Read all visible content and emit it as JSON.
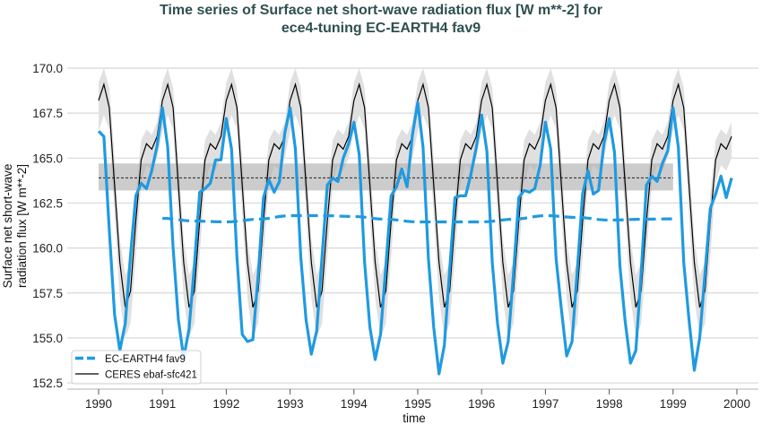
{
  "chart_data": {
    "type": "line",
    "title": "Time series of Surface net short-wave radiation flux [W m**-2] for ece4-tuning EC-EARTH4 fav9",
    "title_lines": [
      "Time series of Surface net short-wave radiation flux [W m**-2] for",
      "ece4-tuning EC-EARTH4 fav9"
    ],
    "xlabel": "time",
    "ylabel_lines": [
      "Surface net short-wave",
      "radiation flux [W m**-2]"
    ],
    "xlim": [
      1989.55,
      2000.4
    ],
    "ylim": [
      152.0,
      171.2
    ],
    "xticks": [
      "1990",
      "1991",
      "1992",
      "1993",
      "1994",
      "1995",
      "1996",
      "1997",
      "1998",
      "1999",
      "2000"
    ],
    "yticks": [
      "152.5",
      "155.0",
      "157.5",
      "160.0",
      "162.5",
      "165.0",
      "167.5",
      "170.0"
    ],
    "grid": "horizontal",
    "legend_position": "lower-left",
    "colors": {
      "model": "#1f9ae0",
      "obs": "#000000",
      "band": "#cccccc",
      "title": "#2f4f4f"
    },
    "series": [
      {
        "name": "EC-EARTH4 fav9",
        "style": "dashed",
        "note_visible": "",
        "running_mean": {
          "x": [
            1991.0,
            1991.5,
            1992.0,
            1992.5,
            1993.0,
            1993.5,
            1994.0,
            1994.5,
            1995.0,
            1995.5,
            1996.0,
            1996.5,
            1997.0,
            1997.5,
            1998.0,
            1998.5,
            1999.0
          ],
          "y": [
            161.65,
            161.5,
            161.45,
            161.6,
            161.8,
            161.8,
            161.75,
            161.6,
            161.45,
            161.45,
            161.45,
            161.6,
            161.8,
            161.7,
            161.55,
            161.6,
            161.62
          ]
        },
        "monthly_start": 1990.0,
        "monthly": [
          166.5,
          166.2,
          161.0,
          156.3,
          154.3,
          155.8,
          159.6,
          162.9,
          163.6,
          163.3,
          164.3,
          165.7,
          167.8,
          165.6,
          160.0,
          156.0,
          153.9,
          155.5,
          159.0,
          163.1,
          163.3,
          163.6,
          164.9,
          164.9,
          167.2,
          165.5,
          159.5,
          155.2,
          154.8,
          154.9,
          158.5,
          162.8,
          163.8,
          163.1,
          163.7,
          166.4,
          167.8,
          165.5,
          159.5,
          156.0,
          154.1,
          155.4,
          159.5,
          163.5,
          163.9,
          163.7,
          165.0,
          165.8,
          167.0,
          165.2,
          159.2,
          155.6,
          153.8,
          155.2,
          159.0,
          162.9,
          163.4,
          164.4,
          163.4,
          166.3,
          168.1,
          165.6,
          159.4,
          155.6,
          153.0,
          154.6,
          158.8,
          162.8,
          162.9,
          162.9,
          164.1,
          165.6,
          167.4,
          165.4,
          159.2,
          155.8,
          153.6,
          154.8,
          158.6,
          162.8,
          163.2,
          163.1,
          163.3,
          164.6,
          167.0,
          165.5,
          159.4,
          156.6,
          154.0,
          154.8,
          158.8,
          163.0,
          164.3,
          163.0,
          163.2,
          165.8,
          167.2,
          165.3,
          159.0,
          155.9,
          153.6,
          154.3,
          158.6,
          163.5,
          164.0,
          163.7,
          164.7,
          165.4,
          167.8,
          165.6,
          159.2,
          156.0,
          153.2,
          155.0,
          158.6,
          162.2,
          163.0,
          164.0,
          162.8,
          163.9
        ]
      },
      {
        "name": "CERES ebaf-sfc421",
        "style": "solid",
        "climatology": [
          168.2,
          169.1,
          167.8,
          163.5,
          159.2,
          156.7,
          157.6,
          161.5,
          164.9,
          165.8,
          165.5,
          166.2
        ],
        "climatology_upper": [
          169.2,
          170.0,
          168.9,
          165.0,
          160.5,
          158.5,
          159.2,
          163.0,
          166.0,
          166.6,
          166.3,
          167.0
        ],
        "climatology_lower": [
          166.5,
          167.4,
          166.6,
          161.8,
          157.2,
          155.0,
          155.8,
          159.5,
          163.6,
          164.6,
          164.3,
          165.0
        ],
        "mean": 163.9,
        "mean_band": [
          163.2,
          164.7
        ],
        "mean_range": [
          1990.0,
          1999.0
        ]
      }
    ]
  }
}
